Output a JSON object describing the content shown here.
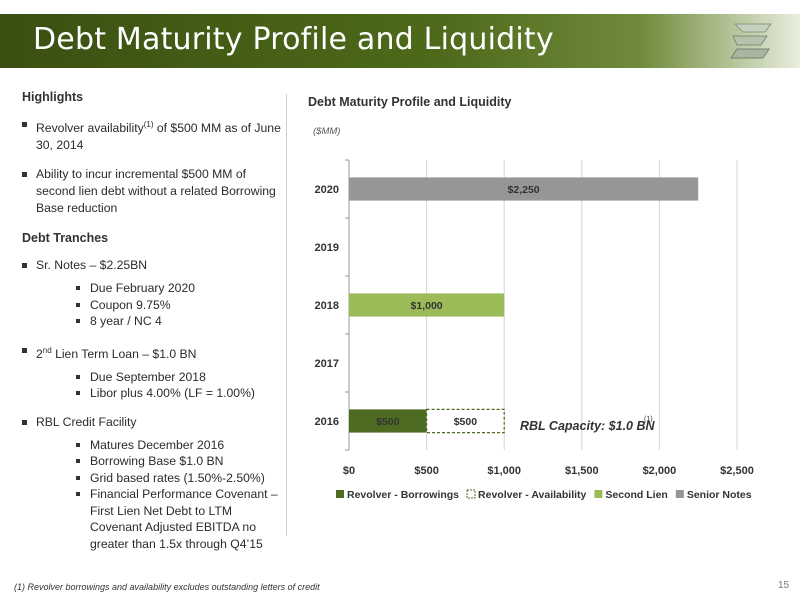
{
  "header": {
    "title": "Debt Maturity Profile and Liquidity"
  },
  "highlights": {
    "heading": "Highlights",
    "bullet1_a": "Revolver availability",
    "bullet1_sup": "(1)",
    "bullet1_b": " of $500 MM as of June 30, 2014",
    "bullet2": "Ability to incur incremental $500 MM of second lien debt without a related Borrowing Base reduction"
  },
  "tranches": {
    "heading": "Debt Tranches",
    "sr_notes": {
      "label": "Sr.  Notes –  $2.25BN",
      "items": [
        "Due February 2020",
        "Coupon 9.75%",
        "8 year / NC 4"
      ]
    },
    "lien2": {
      "label_pre": "2",
      "label_sup": "nd",
      "label_post": " Lien Term Loan –  $1.0 BN",
      "items": [
        "Due September 2018",
        "Libor plus 4.00% (LF = 1.00%)"
      ]
    },
    "rbl": {
      "label": "RBL Credit Facility",
      "items": [
        "Matures December 2016",
        "Borrowing Base  $1.0 BN",
        "Grid based rates (1.50%-2.50%)",
        "Financial Performance Covenant – First Lien Net Debt to LTM Covenant Adjusted EBITDA no greater than 1.5x through Q4’15"
      ]
    }
  },
  "chart_title": "Debt Maturity Profile and Liquidity",
  "chart_units": "($MM)",
  "rbl_capacity": "RBL Capacity: $1.0 BN",
  "rbl_capacity_sup": "(1)",
  "footnote": "(1)    Revolver borrowings and availability excludes outstanding letters of credit",
  "page_number": "15",
  "chart_data": {
    "type": "bar",
    "orientation": "horizontal",
    "stacked": true,
    "categories": [
      "2016",
      "2017",
      "2018",
      "2019",
      "2020"
    ],
    "series": [
      {
        "name": "Revolver - Borrowings",
        "values": [
          500,
          0,
          0,
          0,
          0
        ],
        "labels": [
          "$500",
          "",
          "",
          "",
          ""
        ],
        "color": "#4e6b22"
      },
      {
        "name": "Revolver - Availability",
        "values": [
          500,
          0,
          0,
          0,
          0
        ],
        "labels": [
          "$500",
          "",
          "",
          "",
          ""
        ],
        "color": "#ffffff",
        "border": "#4e6b22"
      },
      {
        "name": "Second Lien",
        "values": [
          0,
          0,
          1000,
          0,
          0
        ],
        "labels": [
          "",
          "",
          "$1,000",
          "",
          ""
        ],
        "color": "#9bbb59"
      },
      {
        "name": "Senior Notes",
        "values": [
          0,
          0,
          0,
          0,
          2250
        ],
        "labels": [
          "",
          "",
          "",
          "",
          "$2,250"
        ],
        "color": "#969696"
      }
    ],
    "xlim": [
      0,
      2500
    ],
    "xticks": [
      0,
      500,
      1000,
      1500,
      2000,
      2500
    ],
    "xtick_labels": [
      "$0",
      "$500",
      "$1,000",
      "$1,500",
      "$2,000",
      "$2,500"
    ],
    "grid": true,
    "legend": "bottom"
  }
}
